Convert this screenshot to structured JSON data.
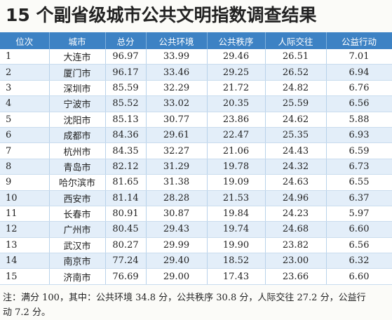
{
  "title": "15 个副省级城市公共文明指数调查结果",
  "table": {
    "header": [
      "位次",
      "城市",
      "总分",
      "公共环境",
      "公共秩序",
      "人际交往",
      "公益行动"
    ],
    "rows": [
      [
        "1",
        "大连市",
        "96.97",
        "33.99",
        "29.46",
        "26.51",
        "7.01"
      ],
      [
        "2",
        "厦门市",
        "96.17",
        "33.46",
        "29.25",
        "26.52",
        "6.94"
      ],
      [
        "3",
        "深圳市",
        "85.59",
        "32.29",
        "21.72",
        "24.82",
        "6.76"
      ],
      [
        "4",
        "宁波市",
        "85.52",
        "33.02",
        "20.35",
        "25.59",
        "6.56"
      ],
      [
        "5",
        "沈阳市",
        "85.13",
        "30.77",
        "23.86",
        "24.62",
        "5.88"
      ],
      [
        "6",
        "成都市",
        "84.36",
        "29.61",
        "22.47",
        "25.35",
        "6.93"
      ],
      [
        "7",
        "杭州市",
        "84.35",
        "32.27",
        "21.06",
        "24.43",
        "6.59"
      ],
      [
        "8",
        "青岛市",
        "82.12",
        "31.29",
        "19.78",
        "24.32",
        "6.73"
      ],
      [
        "9",
        "哈尔滨市",
        "81.65",
        "31.38",
        "19.09",
        "24.63",
        "6.55"
      ],
      [
        "10",
        "西安市",
        "81.14",
        "28.28",
        "21.53",
        "24.96",
        "6.37"
      ],
      [
        "11",
        "长春市",
        "80.91",
        "30.87",
        "19.84",
        "24.23",
        "5.97"
      ],
      [
        "12",
        "广州市",
        "80.45",
        "29.43",
        "19.74",
        "24.68",
        "6.60"
      ],
      [
        "13",
        "武汉市",
        "80.27",
        "29.99",
        "19.90",
        "23.82",
        "6.56"
      ],
      [
        "14",
        "南京市",
        "77.24",
        "29.40",
        "18.52",
        "23.00",
        "6.32"
      ],
      [
        "15",
        "济南市",
        "76.69",
        "29.00",
        "17.43",
        "23.66",
        "6.60"
      ]
    ]
  },
  "note": "注：满分 100，其中：公共环境 34.8 分，公共秩序 30.8 分，人际交往 27.2 分，公益行动 7.2 分。"
}
